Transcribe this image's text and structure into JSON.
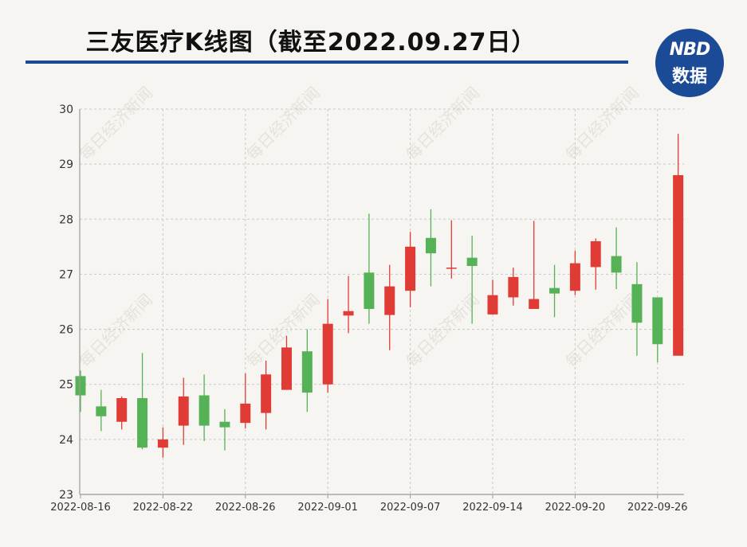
{
  "title": "三友医疗K线图（截至2022.09.27日）",
  "logo": {
    "line1": "NBD",
    "line2": "数据"
  },
  "watermark": "每日经济新闻",
  "colors": {
    "up": "#e03c35",
    "down": "#56b256",
    "grid": "#c9c9c9",
    "axis": "#9a9a9a",
    "title_rule": "#1b4a96"
  },
  "chart_data": {
    "type": "candlestick",
    "title": "三友医疗K线图（截至2022.09.27日）",
    "xlabel": "",
    "ylabel": "",
    "ylim": [
      23,
      30
    ],
    "yticks": [
      23,
      24,
      25,
      26,
      27,
      28,
      29,
      30
    ],
    "xtick_labels": [
      "2022-08-16",
      "2022-08-22",
      "2022-08-26",
      "2022-09-01",
      "2022-09-07",
      "2022-09-14",
      "2022-09-20",
      "2022-09-26"
    ],
    "grid": true,
    "candles": [
      {
        "date": "2022-08-16",
        "open": 25.15,
        "close": 24.8,
        "high": 25.25,
        "low": 24.5
      },
      {
        "date": "2022-08-17",
        "open": 24.6,
        "close": 24.42,
        "high": 24.9,
        "low": 24.15
      },
      {
        "date": "2022-08-18",
        "open": 24.32,
        "close": 24.75,
        "high": 24.78,
        "low": 24.18
      },
      {
        "date": "2022-08-19",
        "open": 24.75,
        "close": 23.85,
        "high": 25.57,
        "low": 23.82
      },
      {
        "date": "2022-08-22",
        "open": 23.85,
        "close": 24.0,
        "high": 24.22,
        "low": 23.67
      },
      {
        "date": "2022-08-23",
        "open": 24.25,
        "close": 24.78,
        "high": 25.12,
        "low": 23.9
      },
      {
        "date": "2022-08-24",
        "open": 24.8,
        "close": 24.25,
        "high": 25.18,
        "low": 23.97
      },
      {
        "date": "2022-08-25",
        "open": 24.32,
        "close": 24.22,
        "high": 24.55,
        "low": 23.8
      },
      {
        "date": "2022-08-26",
        "open": 24.3,
        "close": 24.65,
        "high": 25.2,
        "low": 24.2
      },
      {
        "date": "2022-08-29",
        "open": 24.48,
        "close": 25.18,
        "high": 25.43,
        "low": 24.18
      },
      {
        "date": "2022-08-30",
        "open": 24.9,
        "close": 25.67,
        "high": 25.88,
        "low": 24.9
      },
      {
        "date": "2022-08-31",
        "open": 25.6,
        "close": 24.85,
        "high": 26.0,
        "low": 24.5
      },
      {
        "date": "2022-09-01",
        "open": 25.0,
        "close": 26.1,
        "high": 26.55,
        "low": 24.85
      },
      {
        "date": "2022-09-02",
        "open": 26.25,
        "close": 26.33,
        "high": 26.97,
        "low": 25.93
      },
      {
        "date": "2022-09-05",
        "open": 27.03,
        "close": 26.37,
        "high": 28.1,
        "low": 26.1
      },
      {
        "date": "2022-09-06",
        "open": 26.26,
        "close": 26.78,
        "high": 27.17,
        "low": 25.62
      },
      {
        "date": "2022-09-07",
        "open": 26.7,
        "close": 27.5,
        "high": 27.77,
        "low": 26.4
      },
      {
        "date": "2022-09-08",
        "open": 27.66,
        "close": 27.38,
        "high": 28.18,
        "low": 26.78
      },
      {
        "date": "2022-09-09",
        "open": 27.12,
        "close": 27.12,
        "high": 27.98,
        "low": 26.92
      },
      {
        "date": "2022-09-13",
        "open": 27.3,
        "close": 27.15,
        "high": 27.7,
        "low": 26.1
      },
      {
        "date": "2022-09-14",
        "open": 26.27,
        "close": 26.62,
        "high": 26.9,
        "low": 26.27
      },
      {
        "date": "2022-09-15",
        "open": 26.58,
        "close": 26.95,
        "high": 27.12,
        "low": 26.43
      },
      {
        "date": "2022-09-16",
        "open": 26.37,
        "close": 26.55,
        "high": 27.97,
        "low": 26.37
      },
      {
        "date": "2022-09-19",
        "open": 26.75,
        "close": 26.65,
        "high": 27.17,
        "low": 26.22
      },
      {
        "date": "2022-09-20",
        "open": 26.7,
        "close": 27.2,
        "high": 27.43,
        "low": 26.62
      },
      {
        "date": "2022-09-21",
        "open": 27.13,
        "close": 27.6,
        "high": 27.65,
        "low": 26.72
      },
      {
        "date": "2022-09-22",
        "open": 27.33,
        "close": 27.03,
        "high": 27.85,
        "low": 26.73
      },
      {
        "date": "2022-09-23",
        "open": 26.82,
        "close": 26.12,
        "high": 27.22,
        "low": 25.52
      },
      {
        "date": "2022-09-26",
        "open": 26.58,
        "close": 25.73,
        "high": 26.58,
        "low": 25.4
      },
      {
        "date": "2022-09-27",
        "open": 25.52,
        "close": 28.8,
        "high": 29.55,
        "low": 25.52
      }
    ]
  }
}
